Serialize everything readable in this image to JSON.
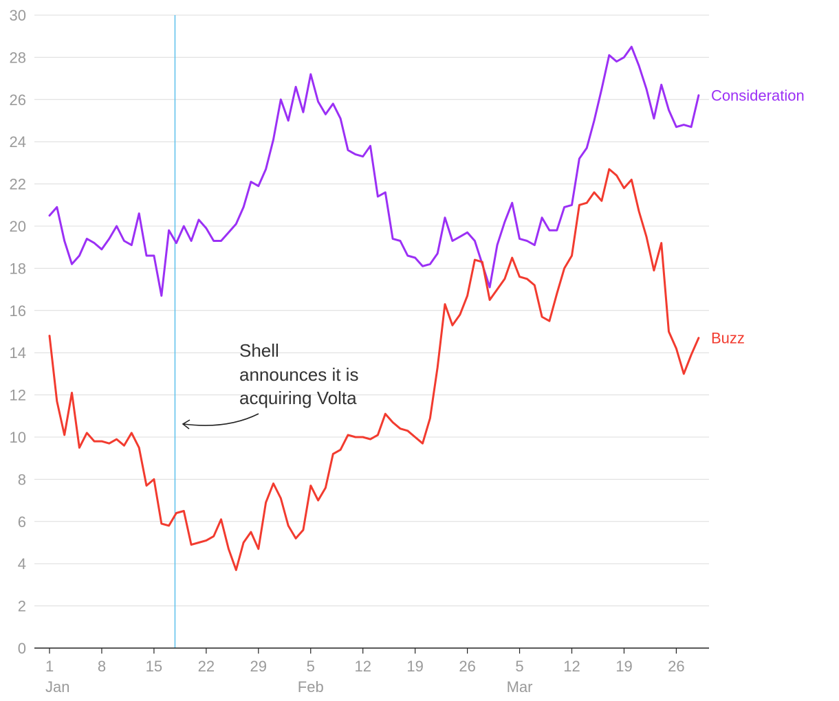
{
  "chart_data": {
    "type": "line",
    "title": "",
    "xlabel": "",
    "ylabel": "",
    "ylim": [
      0,
      30
    ],
    "yticks": [
      0,
      2,
      4,
      6,
      8,
      10,
      12,
      14,
      16,
      18,
      20,
      22,
      24,
      26,
      28,
      30
    ],
    "grid": "horizontal",
    "x_ticks": [
      {
        "day": 0,
        "label": "1",
        "month": "Jan"
      },
      {
        "day": 7,
        "label": "8"
      },
      {
        "day": 14,
        "label": "15"
      },
      {
        "day": 21,
        "label": "22"
      },
      {
        "day": 28,
        "label": "29"
      },
      {
        "day": 35,
        "label": "5",
        "month": "Feb"
      },
      {
        "day": 42,
        "label": "12"
      },
      {
        "day": 49,
        "label": "19"
      },
      {
        "day": 56,
        "label": "26"
      },
      {
        "day": 63,
        "label": "5",
        "month": "Mar"
      },
      {
        "day": 70,
        "label": "12"
      },
      {
        "day": 77,
        "label": "19"
      },
      {
        "day": 84,
        "label": "26"
      }
    ],
    "series": [
      {
        "name": "Consideration",
        "color": "#9b30f5",
        "values": [
          20.5,
          20.9,
          19.3,
          18.2,
          18.6,
          19.4,
          19.2,
          18.9,
          19.4,
          20.0,
          19.3,
          19.1,
          20.6,
          18.6,
          18.6,
          16.7,
          19.8,
          19.2,
          20.0,
          19.3,
          20.3,
          19.9,
          19.3,
          19.3,
          19.7,
          20.1,
          20.9,
          22.1,
          21.9,
          22.7,
          24.1,
          26.0,
          25.0,
          26.6,
          25.4,
          27.2,
          25.9,
          25.3,
          25.8,
          25.1,
          23.6,
          23.4,
          23.3,
          23.8,
          21.4,
          21.6,
          19.4,
          19.3,
          18.6,
          18.5,
          18.1,
          18.2,
          18.7,
          20.4,
          19.3,
          19.5,
          19.7,
          19.3,
          18.2,
          17.1,
          19.1,
          20.2,
          21.1,
          19.4,
          19.3,
          19.1,
          20.4,
          19.8,
          19.8,
          20.9,
          21.0,
          23.2,
          23.7,
          25.0,
          26.5,
          28.1,
          27.8,
          28.0,
          28.5,
          27.6,
          26.5,
          25.1,
          26.7,
          25.5,
          24.7,
          24.8,
          24.7,
          26.2
        ]
      },
      {
        "name": "Buzz",
        "color": "#f23b2f",
        "values": [
          14.8,
          11.7,
          10.1,
          12.1,
          9.5,
          10.2,
          9.8,
          9.8,
          9.7,
          9.9,
          9.6,
          10.2,
          9.5,
          7.7,
          8.0,
          5.9,
          5.8,
          6.4,
          6.5,
          4.9,
          5.0,
          5.1,
          5.3,
          6.1,
          4.7,
          3.7,
          5.0,
          5.5,
          4.7,
          6.9,
          7.8,
          7.1,
          5.8,
          5.2,
          5.6,
          7.7,
          7.0,
          7.6,
          9.2,
          9.4,
          10.1,
          10.0,
          10.0,
          9.9,
          10.1,
          11.1,
          10.7,
          10.4,
          10.3,
          10.0,
          9.7,
          10.9,
          13.3,
          16.3,
          15.3,
          15.8,
          16.7,
          18.4,
          18.3,
          16.5,
          17.0,
          17.5,
          18.5,
          17.6,
          17.5,
          17.2,
          15.7,
          15.5,
          16.8,
          18.0,
          18.6,
          21.0,
          21.1,
          21.6,
          21.2,
          22.7,
          22.4,
          21.8,
          22.2,
          20.7,
          19.5,
          17.9,
          19.2,
          15.0,
          14.2,
          13.0,
          13.9,
          14.7
        ]
      }
    ],
    "event_marker": {
      "day": 17,
      "color": "#5bc0eb"
    },
    "annotation": {
      "lines": [
        "Shell",
        "announces it is",
        "acquiring Volta"
      ]
    }
  }
}
